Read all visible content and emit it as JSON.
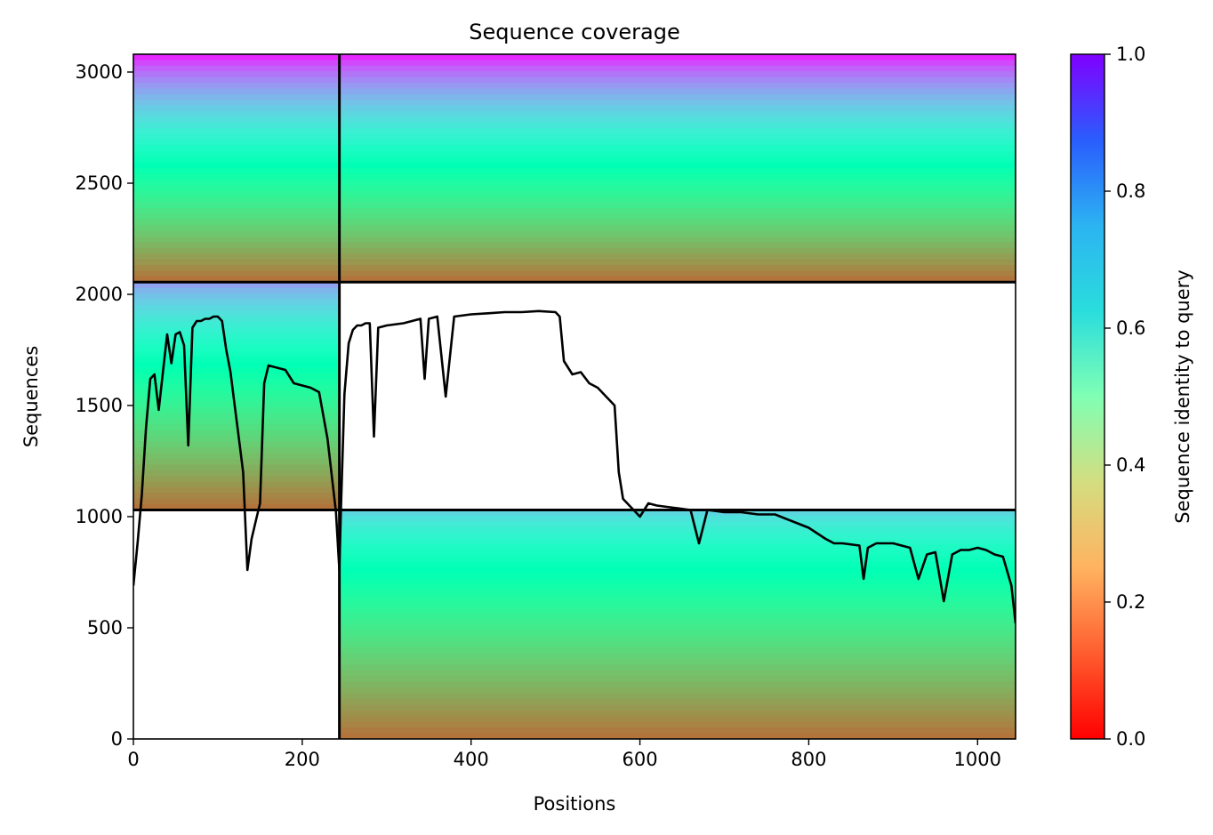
{
  "chart_data": {
    "type": "heatmap",
    "title": "Sequence coverage",
    "xlabel": "Positions",
    "ylabel": "Sequences",
    "xlim": [
      0,
      1045
    ],
    "ylim": [
      0,
      3080
    ],
    "xticks": [
      0,
      200,
      400,
      600,
      800,
      1000
    ],
    "xtick_labels": [
      "0",
      "200",
      "400",
      "600",
      "800",
      "1000"
    ],
    "yticks": [
      0,
      500,
      1000,
      1500,
      2000,
      2500,
      3000
    ],
    "ytick_labels": [
      "0",
      "500",
      "1000",
      "1500",
      "2000",
      "2500",
      "3000"
    ],
    "grid": false,
    "colormap": "rainbow_r",
    "colorbar": {
      "label": "Sequence identity to query",
      "range": [
        0.0,
        1.0
      ],
      "ticks": [
        0.0,
        0.2,
        0.4,
        0.6,
        0.8,
        1.0
      ],
      "tick_labels": [
        "0.0",
        "0.2",
        "0.4",
        "0.6",
        "0.8",
        "1.0"
      ]
    },
    "block_boundaries": {
      "vertical_lines_x": [
        244
      ],
      "horizontal_lines_y": [
        1030,
        2055
      ],
      "horizontal_segments": [
        {
          "y": 1030,
          "x_range": [
            0,
            1045
          ]
        },
        {
          "y": 2055,
          "x_range": [
            0,
            1045
          ]
        }
      ]
    },
    "blocks": [
      {
        "name": "block-1",
        "x_range": [
          0,
          244
        ],
        "y_range": [
          1030,
          2055
        ],
        "identity_top": 0.78,
        "identity_bottom": 0.15
      },
      {
        "name": "block-2",
        "x_range": [
          244,
          1045
        ],
        "y_range": [
          0,
          1030
        ],
        "identity_top": 0.68,
        "identity_bottom": 0.15
      },
      {
        "name": "block-3",
        "x_range": [
          0,
          1045
        ],
        "y_range": [
          2055,
          3080
        ],
        "identity_top": 0.95,
        "identity_bottom": 0.15
      }
    ],
    "series": [
      {
        "type": "line",
        "color": "#000000",
        "x": [
          0,
          5,
          10,
          15,
          20,
          25,
          30,
          35,
          40,
          45,
          50,
          55,
          60,
          65,
          70,
          75,
          80,
          85,
          90,
          95,
          100,
          105,
          110,
          115,
          120,
          125,
          130,
          135,
          140,
          145,
          150,
          155,
          160,
          170,
          180,
          190,
          200,
          210,
          220,
          230,
          240,
          244,
          246,
          250,
          255,
          260,
          265,
          270,
          275,
          280,
          285,
          290,
          300,
          320,
          330,
          340,
          345,
          350,
          360,
          370,
          380,
          400,
          420,
          440,
          460,
          480,
          500,
          505,
          510,
          520,
          530,
          540,
          550,
          560,
          570,
          575,
          580,
          590,
          600,
          610,
          620,
          640,
          660,
          670,
          680,
          700,
          720,
          740,
          760,
          780,
          800,
          820,
          830,
          840,
          860,
          865,
          870,
          880,
          890,
          900,
          910,
          920,
          930,
          940,
          950,
          960,
          970,
          980,
          990,
          1000,
          1010,
          1020,
          1030,
          1040,
          1045
        ],
        "y": [
          690,
          880,
          1100,
          1400,
          1620,
          1640,
          1480,
          1650,
          1820,
          1690,
          1820,
          1830,
          1770,
          1320,
          1850,
          1880,
          1880,
          1890,
          1890,
          1900,
          1900,
          1880,
          1750,
          1650,
          1500,
          1350,
          1200,
          760,
          900,
          980,
          1060,
          1600,
          1680,
          1670,
          1660,
          1600,
          1590,
          1580,
          1560,
          1350,
          1020,
          760,
          1050,
          1550,
          1780,
          1840,
          1860,
          1860,
          1870,
          1870,
          1360,
          1850,
          1860,
          1870,
          1880,
          1890,
          1620,
          1890,
          1900,
          1540,
          1900,
          1910,
          1915,
          1920,
          1920,
          1925,
          1920,
          1900,
          1700,
          1640,
          1650,
          1600,
          1580,
          1540,
          1500,
          1200,
          1080,
          1040,
          1000,
          1060,
          1050,
          1040,
          1030,
          880,
          1030,
          1020,
          1020,
          1010,
          1010,
          980,
          950,
          900,
          880,
          880,
          870,
          720,
          860,
          880,
          880,
          880,
          870,
          860,
          720,
          830,
          840,
          620,
          830,
          850,
          850,
          860,
          850,
          830,
          820,
          690,
          520
        ]
      }
    ]
  }
}
